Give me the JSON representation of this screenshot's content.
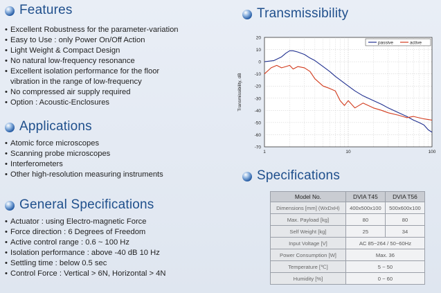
{
  "features": {
    "title": "Features",
    "items": [
      "Excellent Robustness for the parameter-variation",
      "Easy to Use : only Power On/Off Action",
      "Light Weight & Compact Design",
      "No natural low-frequency resonance",
      "Excellent isolation performance for the floor",
      "vibration in the range of low-frequency",
      "No compressed air supply required",
      "Option : Acoustic-Enclosures"
    ]
  },
  "applications": {
    "title": "Applications",
    "items": [
      "Atomic force microscopes",
      "Scanning probe microscopes",
      "Interferometers",
      "Other high-resolution measuring instruments"
    ]
  },
  "general": {
    "title": "General Specifications",
    "items": [
      "Actuator : using Electro-magnetic Force",
      "Force direction : 6 Degrees of Freedom",
      "Active control range : 0.6 ~ 100 Hz",
      "Isolation performance : above -40 dB 10 Hz",
      "Settling time : below 0.5 sec",
      "Control Force : Vertical > 6N, Horizontal > 4N"
    ]
  },
  "transmissibility": {
    "title": "Transmissibility"
  },
  "specifications": {
    "title": "Specifications",
    "header": [
      "Model No.",
      "DVIA T45",
      "DVIA T56"
    ],
    "rows": [
      {
        "label": "Dimensions [mm] (WxDxH)",
        "v1": "400x500x100",
        "v2": "500x600x100"
      },
      {
        "label": "Max. Payload [kg]",
        "v1": "80",
        "v2": "80"
      },
      {
        "label": "Self Weight [kg]",
        "v1": "25",
        "v2": "34"
      },
      {
        "label": "Input Voltage [V]",
        "span": "AC 85~264 / 50~60Hz"
      },
      {
        "label": "Power Consumption [W]",
        "span": "Max. 36"
      },
      {
        "label": "Temperature [℃]",
        "span": "5 ~ 50"
      },
      {
        "label": "Humidity [%]",
        "span": "0 ~ 60"
      }
    ]
  },
  "chart_data": {
    "type": "line",
    "xscale": "log",
    "xlim": [
      1,
      100
    ],
    "ylim": [
      -70,
      20
    ],
    "ylabel": "Transmissibility, dB",
    "xticks": [
      "1",
      "10",
      "100"
    ],
    "yticks": [
      "20",
      "10",
      "0",
      "-10",
      "-20",
      "-30",
      "-40",
      "-50",
      "-60",
      "-70"
    ],
    "legend_position": "top-right",
    "series": [
      {
        "name": "passive",
        "color": "#1f2f8f",
        "x": [
          1,
          1.3,
          1.6,
          1.8,
          2.0,
          2.2,
          2.5,
          3,
          3.5,
          4,
          5,
          6,
          7,
          8,
          10,
          12,
          15,
          20,
          25,
          30,
          40,
          50,
          60,
          70,
          80,
          90,
          100
        ],
        "y": [
          0,
          1,
          4,
          7,
          9,
          9,
          8,
          6,
          3,
          1,
          -4,
          -8,
          -12,
          -15,
          -20,
          -24,
          -28,
          -32,
          -35,
          -38,
          -42,
          -45,
          -48,
          -50,
          -52,
          -56,
          -58
        ]
      },
      {
        "name": "active",
        "color": "#d23a1c",
        "x": [
          1,
          1.2,
          1.4,
          1.6,
          1.8,
          2.0,
          2.2,
          2.5,
          3,
          3.5,
          4,
          5,
          6,
          7,
          8,
          9,
          10,
          12,
          15,
          20,
          25,
          30,
          40,
          50,
          60,
          80,
          100
        ],
        "y": [
          -10,
          -5,
          -3,
          -5,
          -4,
          -3,
          -6,
          -4,
          -5,
          -8,
          -14,
          -20,
          -22,
          -24,
          -32,
          -36,
          -32,
          -38,
          -34,
          -38,
          -40,
          -42,
          -44,
          -46,
          -45,
          -47,
          -48
        ]
      }
    ]
  }
}
